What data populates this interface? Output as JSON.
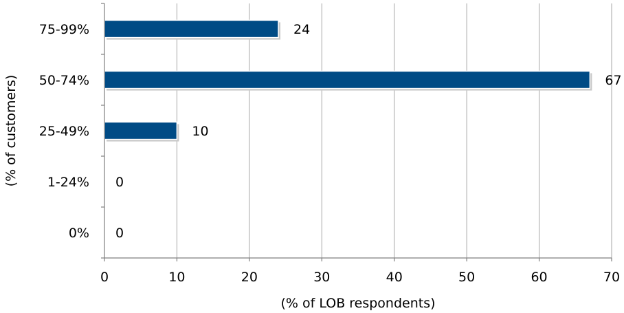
{
  "chart_data": {
    "type": "bar",
    "orientation": "horizontal",
    "categories": [
      "75-99%",
      "50-74%",
      "25-49%",
      "1-24%",
      "0%"
    ],
    "values": [
      24,
      67,
      10,
      0,
      0
    ],
    "data_labels": [
      "24",
      "67",
      "10",
      "0",
      "0"
    ],
    "xlabel": "(% of LOB respondents)",
    "ylabel": "(% of customers)",
    "xlim": [
      0,
      70
    ],
    "xticks": [
      0,
      10,
      20,
      30,
      40,
      50,
      60,
      70
    ],
    "xtick_labels": [
      "0",
      "10",
      "20",
      "30",
      "40",
      "50",
      "60",
      "70"
    ],
    "grid": true,
    "legend": "none",
    "colors": {
      "bar": "#004b85",
      "grid": "#a6a6a6",
      "axis": "#7f7f7f"
    }
  }
}
